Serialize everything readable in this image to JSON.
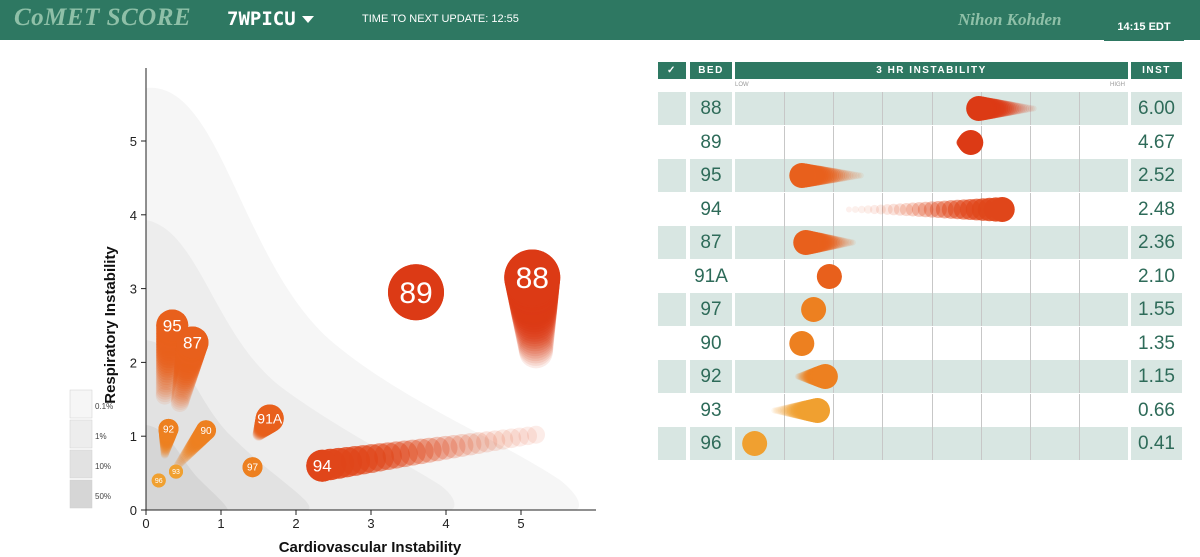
{
  "header": {
    "brand": "CoMET SCORE",
    "unit": "7WPICU",
    "update_label": "TIME TO NEXT UPDATE: 12:55",
    "vendor": "Nihon Kohden",
    "time": "14:15 EDT"
  },
  "chart_data": {
    "type": "scatter",
    "xlabel": "Cardiovascular Instability",
    "ylabel": "Respiratory Instability",
    "xlim": [
      0,
      6
    ],
    "ylim": [
      0,
      5.9
    ],
    "xticks": [
      "0",
      "1",
      "2",
      "3",
      "4",
      "5"
    ],
    "yticks": [
      "0",
      "1",
      "2",
      "3",
      "4",
      "5"
    ],
    "legend": [
      "0.1%",
      "1%",
      "10%",
      "50%"
    ],
    "points": [
      {
        "label": "88",
        "x": 5.15,
        "y": 3.15,
        "tail_x": 5.2,
        "tail_y": 2.15,
        "color": "#dc3a15",
        "size": "large"
      },
      {
        "label": "89",
        "x": 3.6,
        "y": 2.95,
        "tail_x": 3.6,
        "tail_y": 2.95,
        "color": "#dc3a15",
        "size": "large"
      },
      {
        "label": "95",
        "x": 0.35,
        "y": 2.5,
        "tail_x": 0.25,
        "tail_y": 1.55,
        "color": "#e8601c",
        "size": "medium"
      },
      {
        "label": "87",
        "x": 0.62,
        "y": 2.27,
        "tail_x": 0.45,
        "tail_y": 1.45,
        "color": "#e8601c",
        "size": "medium"
      },
      {
        "label": "91A",
        "x": 1.65,
        "y": 1.24,
        "tail_x": 1.5,
        "tail_y": 1.02,
        "color": "#e8601c",
        "size": "small"
      },
      {
        "label": "94",
        "x": 2.35,
        "y": 0.6,
        "tail_x": 5.2,
        "tail_y": 1.02,
        "color": "#e0461a",
        "size": "medium"
      },
      {
        "label": "90",
        "x": 0.8,
        "y": 1.08,
        "tail_x": 0.42,
        "tail_y": 0.6,
        "color": "#ed8020",
        "size": "tiny"
      },
      {
        "label": "92",
        "x": 0.3,
        "y": 1.1,
        "tail_x": 0.25,
        "tail_y": 0.75,
        "color": "#ed8020",
        "size": "tiny"
      },
      {
        "label": "97",
        "x": 1.42,
        "y": 0.58,
        "tail_x": 1.42,
        "tail_y": 0.58,
        "color": "#ed8020",
        "size": "tiny"
      },
      {
        "label": "93",
        "x": 0.4,
        "y": 0.52,
        "tail_x": 0.4,
        "tail_y": 0.52,
        "color": "#f0a030",
        "size": "micro"
      },
      {
        "label": "96",
        "x": 0.17,
        "y": 0.4,
        "tail_x": 0.17,
        "tail_y": 0.4,
        "color": "#f0a030",
        "size": "micro"
      }
    ]
  },
  "table": {
    "columns": [
      "✓",
      "BED",
      "3 HR INSTABILITY",
      "INST"
    ],
    "scale_low": "LOW",
    "scale_high": "HIGH",
    "rows": [
      {
        "bed": "88",
        "inst": "6.00",
        "start": 0.62,
        "end": 0.76,
        "color": "#dc3a15"
      },
      {
        "bed": "89",
        "inst": "4.67",
        "start": 0.6,
        "end": 0.57,
        "color": "#dc3a15"
      },
      {
        "bed": "95",
        "inst": "2.52",
        "start": 0.17,
        "end": 0.32,
        "color": "#e8601c"
      },
      {
        "bed": "94",
        "inst": "2.48",
        "start": 0.68,
        "end": 0.29,
        "color": "#e0461a"
      },
      {
        "bed": "87",
        "inst": "2.36",
        "start": 0.18,
        "end": 0.3,
        "color": "#e8601c"
      },
      {
        "bed": "91A",
        "inst": "2.10",
        "start": 0.24,
        "end": 0.26,
        "color": "#e8601c"
      },
      {
        "bed": "97",
        "inst": "1.55",
        "start": 0.2,
        "end": 0.2,
        "color": "#ed8020"
      },
      {
        "bed": "90",
        "inst": "1.35",
        "start": 0.17,
        "end": 0.17,
        "color": "#ed8020"
      },
      {
        "bed": "92",
        "inst": "1.15",
        "start": 0.23,
        "end": 0.16,
        "color": "#ed8020"
      },
      {
        "bed": "93",
        "inst": "0.66",
        "start": 0.21,
        "end": 0.1,
        "color": "#f0a030"
      },
      {
        "bed": "96",
        "inst": "0.41",
        "start": 0.05,
        "end": 0.05,
        "color": "#f0a030"
      }
    ]
  }
}
